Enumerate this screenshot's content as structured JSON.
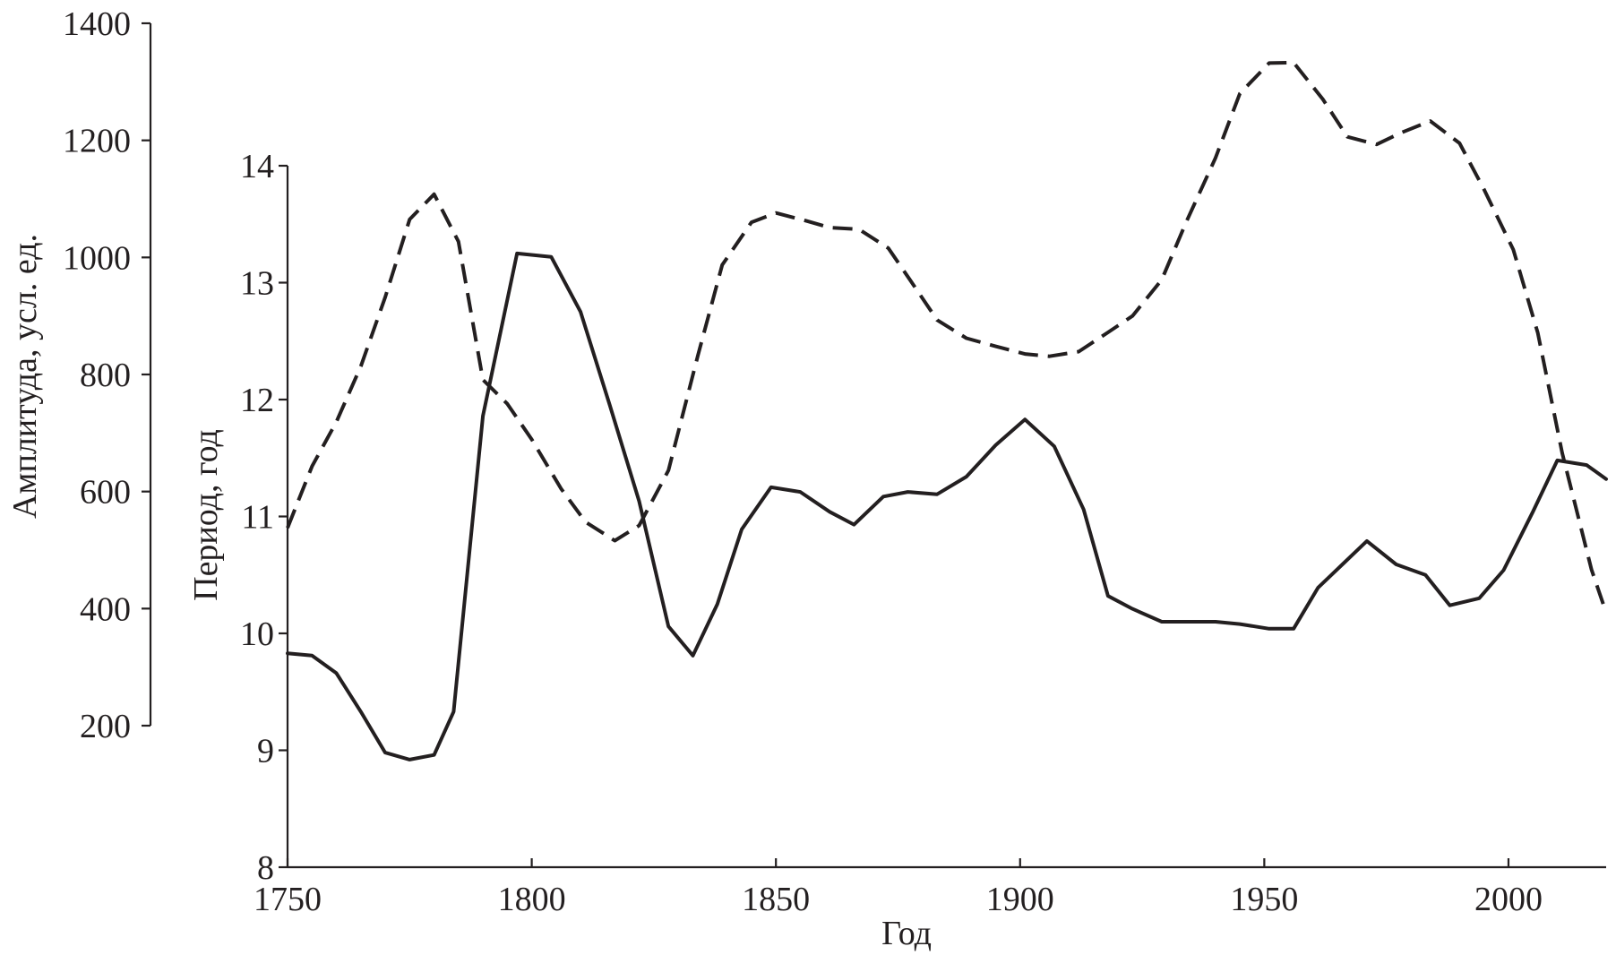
{
  "chart_data": {
    "type": "line",
    "xlabel": "Год",
    "ylabel_left": "Амплитуда, усл. ед.",
    "ylabel_right": "Период, год",
    "xlim": [
      1750,
      2020
    ],
    "x_ticks": [
      1750,
      1800,
      1850,
      1900,
      1950,
      2000
    ],
    "amplitude_axis": {
      "ticks": [
        200,
        400,
        600,
        800,
        1000,
        1200,
        1400
      ],
      "ylim": [
        200,
        1400
      ]
    },
    "period_axis": {
      "ticks": [
        8,
        9,
        10,
        11,
        12,
        13,
        14
      ],
      "ylim": [
        8,
        14
      ]
    },
    "grid": false,
    "series": [
      {
        "line": "solid",
        "axis": "period",
        "x": [
          1750,
          1755,
          1760,
          1765,
          1770,
          1775,
          1780,
          1784,
          1790,
          1797,
          1804,
          1810,
          1816,
          1822,
          1828,
          1833,
          1838,
          1843,
          1849,
          1855,
          1861,
          1866,
          1872,
          1877,
          1883,
          1889,
          1895,
          1901,
          1907,
          1913,
          1918,
          1923,
          1929,
          1934,
          1940,
          1945,
          1951,
          1956,
          1961,
          1966,
          1971,
          1977,
          1983,
          1988,
          1994,
          1999,
          2005,
          2010,
          2016,
          2020
        ],
        "y": [
          9.83,
          9.81,
          9.66,
          9.33,
          8.98,
          8.92,
          8.96,
          9.33,
          11.86,
          13.25,
          13.22,
          12.75,
          11.95,
          11.13,
          10.06,
          9.81,
          10.25,
          10.89,
          11.25,
          11.21,
          11.04,
          10.93,
          11.17,
          11.21,
          11.19,
          11.34,
          11.61,
          11.83,
          11.6,
          11.06,
          10.32,
          10.21,
          10.1,
          10.1,
          10.1,
          10.08,
          10.04,
          10.04,
          10.39,
          10.59,
          10.79,
          10.59,
          10.5,
          10.24,
          10.3,
          10.54,
          11.04,
          11.48,
          11.44,
          11.32
        ]
      },
      {
        "line": "dashed",
        "axis": "amplitude",
        "x": [
          1750,
          1755,
          1760,
          1765,
          1770,
          1775,
          1780,
          1785,
          1790,
          1795,
          1800,
          1806,
          1811,
          1817,
          1822,
          1828,
          1834,
          1839,
          1845,
          1850,
          1856,
          1861,
          1867,
          1873,
          1878,
          1883,
          1889,
          1895,
          1901,
          1906,
          1912,
          1918,
          1923,
          1929,
          1934,
          1940,
          1945,
          1951,
          1956,
          1962,
          1967,
          1973,
          1978,
          1984,
          1990,
          1995,
          2001,
          2006,
          2011,
          2017,
          2020
        ],
        "y": [
          538,
          643,
          719,
          814,
          932,
          1065,
          1108,
          1027,
          791,
          750,
          689,
          605,
          548,
          516,
          542,
          636,
          832,
          987,
          1060,
          1076,
          1063,
          1051,
          1048,
          1016,
          955,
          893,
          862,
          848,
          835,
          831,
          839,
          872,
          900,
          962,
          1060,
          1170,
          1280,
          1332,
          1333,
          1270,
          1206,
          1193,
          1213,
          1233,
          1195,
          1116,
          1013,
          871,
          666,
          467,
          393
        ]
      }
    ]
  }
}
